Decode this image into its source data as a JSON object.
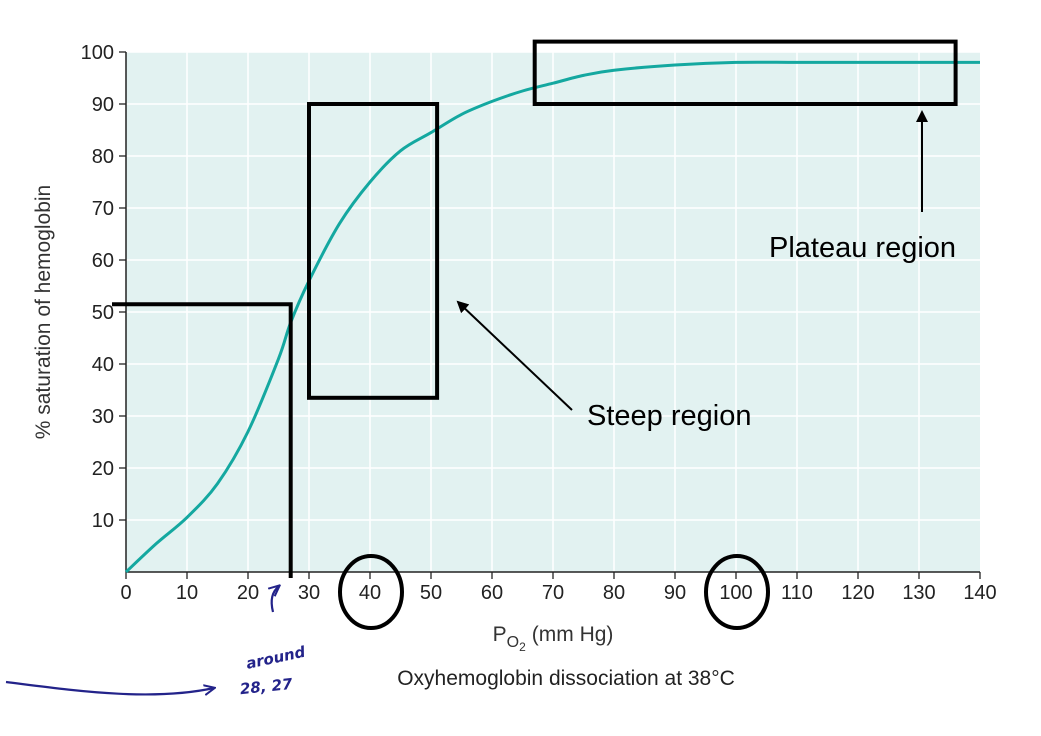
{
  "chart_data": {
    "type": "line",
    "title": "",
    "caption": "Oxyhemoglobin dissociation at 38°C",
    "xlabel": "P",
    "xlabel_sub": "O",
    "xlabel_subsub": "2",
    "xlabel_units": "(mm Hg)",
    "ylabel": "% saturation of hemoglobin",
    "xlim": [
      0,
      140
    ],
    "ylim": [
      0,
      100
    ],
    "xticks": [
      0,
      10,
      20,
      30,
      40,
      50,
      60,
      70,
      80,
      90,
      100,
      110,
      120,
      130,
      140
    ],
    "yticks": [
      10,
      20,
      30,
      40,
      50,
      60,
      70,
      80,
      90,
      100
    ],
    "grid": true,
    "colors": {
      "curve": "#14a8a0",
      "plot_bg": "#e2f2f1",
      "grid": "#ffffff",
      "annotation": "#000000",
      "handwriting": "#23238a"
    },
    "series": [
      {
        "x": [
          0,
          5,
          10,
          15,
          20,
          25,
          27,
          30,
          35,
          40,
          45,
          50,
          55,
          60,
          65,
          70,
          75,
          80,
          90,
          100,
          110,
          120,
          130,
          140
        ],
        "y": [
          0,
          5.5,
          10.5,
          17,
          27,
          41,
          48,
          56,
          67,
          75,
          81,
          84.5,
          88,
          90.5,
          92.5,
          94,
          95.5,
          96.5,
          97.5,
          98,
          98,
          98,
          98,
          98
        ]
      }
    ],
    "annotations": {
      "steep_label": "Steep region",
      "plateau_label": "Plateau region",
      "handwritten_line1": "around",
      "handwritten_line2": "28, 27",
      "p50_line": {
        "x": 27,
        "y": 51.5
      },
      "steep_box": {
        "x0": 30,
        "x1": 51,
        "y0": 33.5,
        "y1": 90
      },
      "plateau_box": {
        "x0": 67,
        "x1": 136,
        "y0": 90,
        "y1": 102
      },
      "circled_ticks": [
        40,
        100
      ]
    }
  }
}
